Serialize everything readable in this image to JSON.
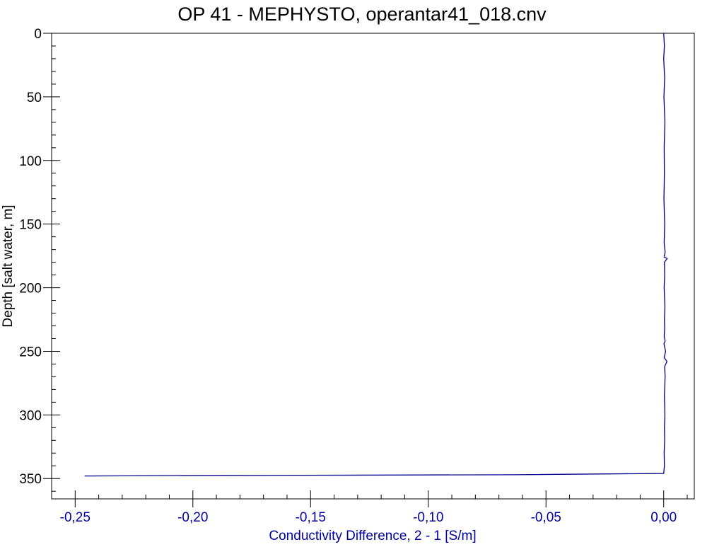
{
  "chart_data": {
    "type": "line",
    "title": "OP 41 - MEPHYSTO, operantar41_018.cnv",
    "xlabel": "Conductivity Difference, 2 - 1 [S/m]",
    "ylabel": "Depth [salt water, m]",
    "xlim": [
      -0.26,
      0.013
    ],
    "ylim": [
      0,
      366
    ],
    "y_inverted": true,
    "x_ticks": [
      -0.25,
      -0.2,
      -0.15,
      -0.1,
      -0.05,
      0.0
    ],
    "x_tick_labels": [
      "-0,25",
      "-0,20",
      "-0,15",
      "-0,10",
      "-0,05",
      "0,00"
    ],
    "y_ticks": [
      0,
      50,
      100,
      150,
      200,
      250,
      300,
      350
    ],
    "y_tick_labels": [
      "0",
      "50",
      "100",
      "150",
      "200",
      "250",
      "300",
      "350"
    ],
    "x_minor_step": 0.01,
    "y_minor_step": 10,
    "grid": false,
    "series": [
      {
        "color": "#00008b",
        "x": [
          0.0,
          0.0003,
          0.0,
          0.0004,
          0.0001,
          0.0005,
          0.0002,
          0.0003,
          0.0001,
          0.0004,
          0.0002,
          0.0006,
          0.0002,
          0.0015,
          0.0003,
          0.0004,
          0.0002,
          0.0005,
          0.0003,
          0.0004,
          0.0002,
          0.0006,
          0.0001,
          0.0008,
          0.0002,
          0.0014,
          0.0004,
          0.0006,
          0.0003,
          0.0005,
          0.0003,
          0.0004,
          0.0002,
          0.0003,
          0.0,
          -0.063,
          -0.185,
          -0.246
        ],
        "y": [
          0,
          10,
          20,
          35,
          50,
          70,
          90,
          110,
          130,
          150,
          165,
          172,
          176,
          177,
          180,
          190,
          200,
          215,
          225,
          232,
          238,
          242,
          244,
          250,
          255,
          258,
          262,
          270,
          285,
          300,
          310,
          320,
          330,
          340,
          346,
          347,
          347.6,
          348
        ]
      }
    ]
  }
}
